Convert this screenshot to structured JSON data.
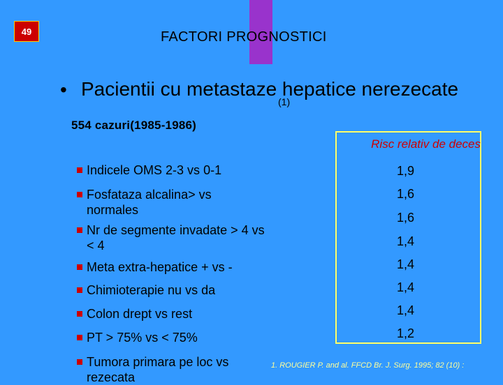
{
  "slide_number": "49",
  "title": "FACTORI PROGNOSTICI",
  "subtitle": "Pacientii cu metastaze hepatice nerezecate",
  "subtitle_sup": "(1)",
  "cases": "554 cazuri(1985-1986)",
  "risk_header": "Risc relativ de deces",
  "factors": [
    {
      "line1": "Indicele OMS 2-3 vs 0-1",
      "line2": ""
    },
    {
      "line1": "Fosfataza  alcalina> vs",
      "line2": "normales"
    },
    {
      "line1": "Nr de segmente invadate > 4 vs",
      "line2": "< 4"
    },
    {
      "line1": "Meta extra-hepatice + vs -",
      "line2": ""
    },
    {
      "line1": "Chimioterapie nu vs da",
      "line2": ""
    },
    {
      "line1": "Colon drept vs rest",
      "line2": ""
    },
    {
      "line1": "PT > 75% vs < 75%",
      "line2": ""
    },
    {
      "line1": "Tumora primara pe loc vs",
      "line2": "rezecata"
    }
  ],
  "risks": [
    "1,9",
    "1,6",
    "1,6",
    "1,4",
    "1,4",
    "1,4",
    "1,4",
    "1,2"
  ],
  "citation": "1. ROUGIER P. and al. FFCD Br. J. Surg. 1995; 82 (10) :",
  "colors": {
    "background": "#3399ff",
    "accent": "#cc0000",
    "box": "#ffff66",
    "purple": "#9933cc"
  }
}
